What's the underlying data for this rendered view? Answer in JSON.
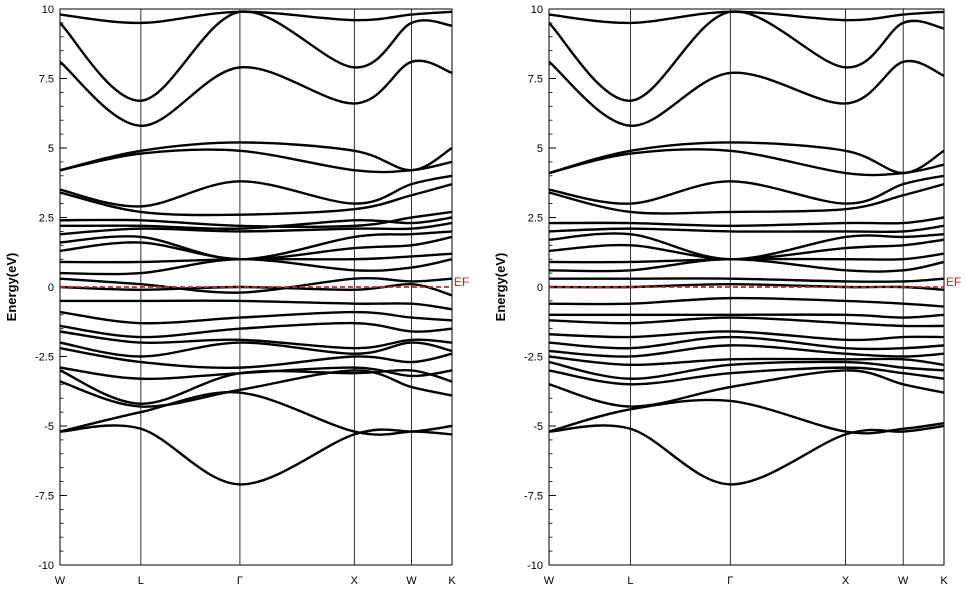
{
  "colors": {
    "band": "#000000",
    "fermi": "#d62020",
    "axis": "#000000"
  },
  "chart_data": [
    {
      "type": "line",
      "title": "",
      "xlabel": "",
      "ylabel": "Energy(eV)",
      "ylim": [
        -10,
        10
      ],
      "yticks": [
        -10,
        -7.5,
        -5,
        -2.5,
        0,
        2.5,
        5,
        7.5,
        10
      ],
      "ytick_labels": [
        "-10",
        "-7.5",
        "-5",
        "-2.5",
        "0",
        "2.5",
        "5",
        "7.5",
        "10"
      ],
      "kpoints": [
        {
          "label": "W",
          "x": 0
        },
        {
          "label": "L",
          "x": 0.707
        },
        {
          "label": "Γ",
          "x": 1.573
        },
        {
          "label": "X",
          "x": 2.573
        },
        {
          "label": "W",
          "x": 3.073
        },
        {
          "label": "K",
          "x": 3.427
        }
      ],
      "fermi_level": {
        "label": "EF",
        "value": 0
      },
      "series": [
        {
          "values": [
            -5.2,
            -5.1,
            -7.1,
            -5.3,
            -5.2,
            -5.3
          ]
        },
        {
          "values": [
            -5.2,
            -4.5,
            -3.8,
            -5.2,
            -5.2,
            -5.0
          ]
        },
        {
          "values": [
            -3.4,
            -4.3,
            -3.7,
            -3.0,
            -3.6,
            -3.9
          ]
        },
        {
          "values": [
            -3.0,
            -4.2,
            -3.1,
            -3.1,
            -3.0,
            -3.4
          ]
        },
        {
          "values": [
            -2.9,
            -3.3,
            -3.1,
            -2.9,
            -3.2,
            -3.0
          ]
        },
        {
          "values": [
            -2.2,
            -2.7,
            -2.9,
            -2.5,
            -2.7,
            -2.4
          ]
        },
        {
          "values": [
            -2.0,
            -2.5,
            -2.0,
            -2.4,
            -2.0,
            -2.3
          ]
        },
        {
          "values": [
            -1.6,
            -2.0,
            -1.9,
            -2.2,
            -1.9,
            -2.0
          ]
        },
        {
          "values": [
            -1.4,
            -1.8,
            -1.5,
            -1.3,
            -1.6,
            -1.5
          ]
        },
        {
          "values": [
            -0.9,
            -1.3,
            -1.1,
            -0.9,
            -1.1,
            -1.2
          ]
        },
        {
          "values": [
            -0.5,
            -0.5,
            -0.5,
            -0.6,
            -0.6,
            -0.8
          ]
        },
        {
          "values": [
            0.0,
            -0.1,
            0.0,
            -0.1,
            0.1,
            -0.3
          ]
        },
        {
          "values": [
            0.3,
            0.1,
            -0.2,
            0.3,
            0.2,
            0.3
          ]
        },
        {
          "values": [
            0.5,
            0.5,
            1.0,
            0.6,
            0.7,
            1.0
          ]
        },
        {
          "values": [
            0.9,
            0.9,
            1.0,
            1.0,
            1.1,
            1.2
          ]
        },
        {
          "values": [
            1.3,
            1.6,
            1.0,
            1.4,
            1.5,
            1.8
          ]
        },
        {
          "values": [
            1.6,
            1.8,
            1.0,
            1.8,
            1.9,
            2.0
          ]
        },
        {
          "values": [
            1.9,
            2.1,
            2.0,
            2.1,
            2.1,
            2.3
          ]
        },
        {
          "values": [
            2.2,
            2.2,
            2.1,
            2.4,
            2.3,
            2.5
          ]
        },
        {
          "values": [
            2.4,
            2.4,
            2.2,
            2.2,
            2.5,
            2.7
          ]
        },
        {
          "values": [
            3.4,
            2.7,
            2.6,
            2.8,
            3.3,
            3.7
          ]
        },
        {
          "values": [
            3.5,
            2.9,
            3.8,
            3.0,
            3.7,
            4.0
          ]
        },
        {
          "values": [
            4.2,
            4.8,
            4.9,
            4.2,
            4.2,
            4.5
          ]
        },
        {
          "values": [
            4.2,
            4.9,
            5.2,
            4.9,
            4.2,
            5.0
          ]
        },
        {
          "values": [
            8.1,
            5.8,
            7.9,
            6.6,
            8.1,
            7.7
          ]
        },
        {
          "values": [
            9.5,
            6.7,
            9.9,
            7.9,
            9.5,
            9.4
          ]
        },
        {
          "values": [
            9.8,
            9.5,
            9.9,
            9.6,
            9.8,
            9.9
          ]
        }
      ]
    },
    {
      "type": "line",
      "title": "",
      "xlabel": "",
      "ylabel": "Energy(eV)",
      "ylim": [
        -10,
        10
      ],
      "yticks": [
        -10,
        -7.5,
        -5,
        -2.5,
        0,
        2.5,
        5,
        7.5,
        10
      ],
      "ytick_labels": [
        "-10",
        "-7.5",
        "-5",
        "-2.5",
        "0",
        "2.5",
        "5",
        "7.5",
        "10"
      ],
      "kpoints": [
        {
          "label": "W",
          "x": 0
        },
        {
          "label": "L",
          "x": 0.707
        },
        {
          "label": "Γ",
          "x": 1.573
        },
        {
          "label": "X",
          "x": 2.573
        },
        {
          "label": "W",
          "x": 3.073
        },
        {
          "label": "K",
          "x": 3.427
        }
      ],
      "fermi_level": {
        "label": "EF",
        "value": 0
      },
      "series": [
        {
          "values": [
            -5.2,
            -5.1,
            -7.1,
            -5.3,
            -5.2,
            -5.0
          ]
        },
        {
          "values": [
            -5.2,
            -4.4,
            -4.1,
            -5.2,
            -5.1,
            -4.9
          ]
        },
        {
          "values": [
            -3.5,
            -4.3,
            -3.6,
            -3.0,
            -3.5,
            -3.8
          ]
        },
        {
          "values": [
            -3.0,
            -3.5,
            -3.1,
            -2.9,
            -3.1,
            -3.3
          ]
        },
        {
          "values": [
            -2.7,
            -3.3,
            -2.8,
            -2.7,
            -2.9,
            -3.0
          ]
        },
        {
          "values": [
            -2.5,
            -2.8,
            -2.6,
            -2.6,
            -2.6,
            -2.8
          ]
        },
        {
          "values": [
            -2.3,
            -2.5,
            -2.1,
            -2.4,
            -2.5,
            -2.4
          ]
        },
        {
          "values": [
            -2.0,
            -2.2,
            -1.8,
            -2.2,
            -2.2,
            -2.1
          ]
        },
        {
          "values": [
            -1.7,
            -1.8,
            -1.6,
            -1.9,
            -1.8,
            -1.8
          ]
        },
        {
          "values": [
            -1.2,
            -1.3,
            -1.1,
            -1.3,
            -1.4,
            -1.4
          ]
        },
        {
          "values": [
            -1.0,
            -1.0,
            -1.0,
            -1.0,
            -1.1,
            -1.0
          ]
        },
        {
          "values": [
            -0.6,
            -0.6,
            -0.4,
            -0.5,
            -0.6,
            -0.7
          ]
        },
        {
          "values": [
            0.0,
            0.0,
            0.1,
            0.0,
            0.0,
            -0.1
          ]
        },
        {
          "values": [
            0.3,
            0.3,
            0.3,
            0.2,
            0.2,
            0.3
          ]
        },
        {
          "values": [
            0.6,
            0.6,
            1.0,
            0.6,
            0.6,
            0.9
          ]
        },
        {
          "values": [
            0.9,
            0.9,
            1.0,
            1.0,
            1.0,
            1.2
          ]
        },
        {
          "values": [
            1.3,
            1.5,
            1.0,
            1.4,
            1.5,
            1.7
          ]
        },
        {
          "values": [
            1.7,
            1.9,
            1.0,
            1.8,
            1.8,
            1.9
          ]
        },
        {
          "values": [
            2.0,
            2.1,
            2.0,
            2.0,
            2.0,
            2.2
          ]
        },
        {
          "values": [
            2.3,
            2.3,
            2.2,
            2.3,
            2.3,
            2.5
          ]
        },
        {
          "values": [
            3.4,
            2.7,
            2.7,
            2.8,
            3.3,
            3.7
          ]
        },
        {
          "values": [
            3.5,
            3.0,
            3.8,
            3.0,
            3.7,
            4.0
          ]
        },
        {
          "values": [
            4.1,
            4.8,
            4.9,
            4.1,
            4.1,
            4.4
          ]
        },
        {
          "values": [
            4.1,
            4.9,
            5.2,
            4.9,
            4.1,
            4.9
          ]
        },
        {
          "values": [
            8.1,
            5.8,
            7.7,
            6.6,
            8.1,
            7.6
          ]
        },
        {
          "values": [
            9.5,
            6.7,
            9.9,
            7.9,
            9.5,
            9.3
          ]
        },
        {
          "values": [
            9.8,
            9.5,
            9.9,
            9.6,
            9.8,
            9.9
          ]
        }
      ]
    }
  ]
}
